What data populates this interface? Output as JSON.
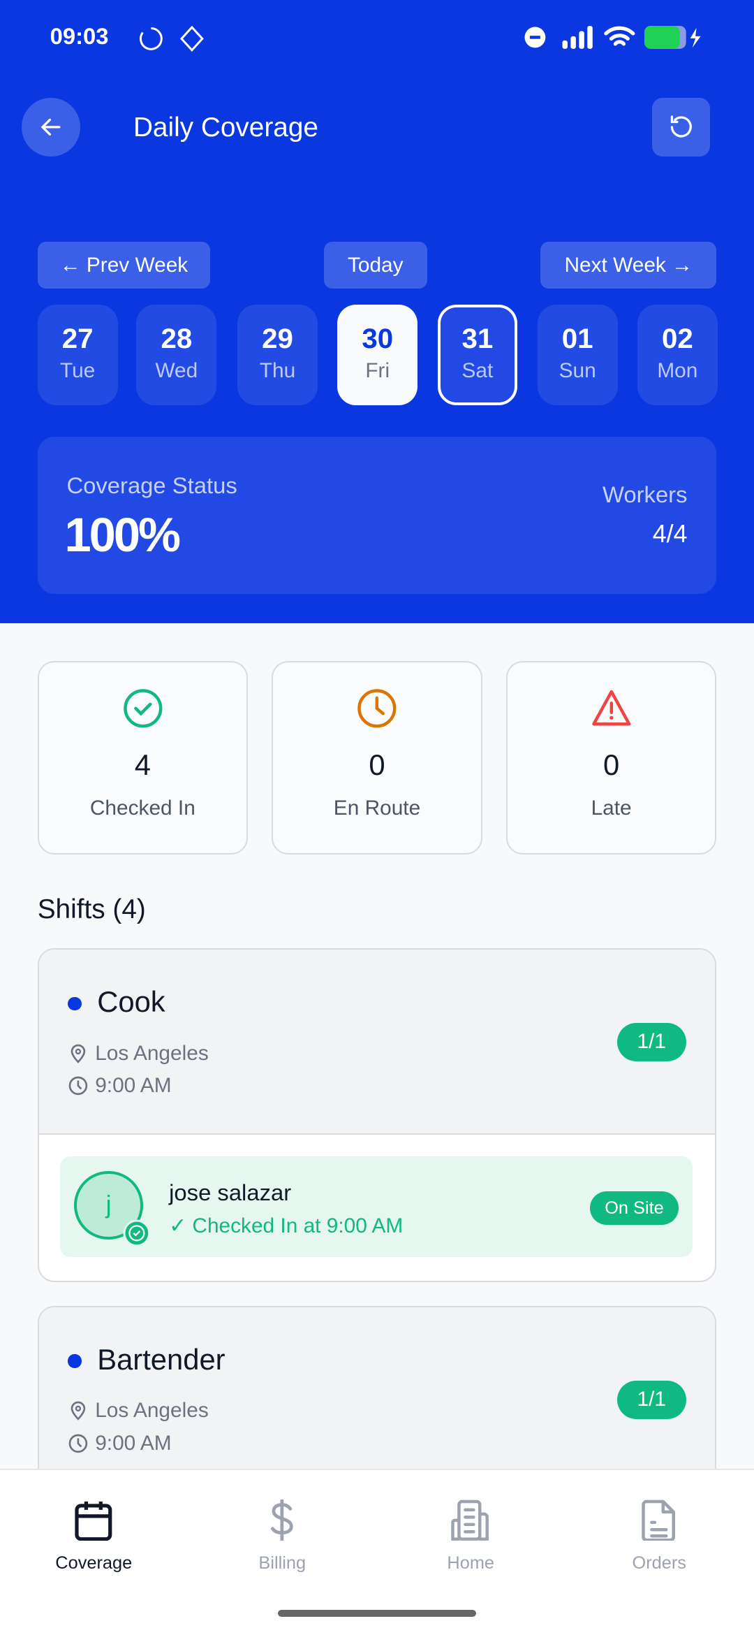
{
  "status_bar": {
    "time": "09:03"
  },
  "header": {
    "title": "Daily Coverage",
    "back_icon": "arrow-left-icon",
    "refresh_icon": "refresh-icon"
  },
  "week_nav": {
    "prev": "← Prev Week",
    "today": "Today",
    "next": "Next Week →"
  },
  "days": [
    {
      "num": "27",
      "name": "Tue"
    },
    {
      "num": "28",
      "name": "Wed"
    },
    {
      "num": "29",
      "name": "Thu"
    },
    {
      "num": "30",
      "name": "Fri",
      "selected": true
    },
    {
      "num": "31",
      "name": "Sat",
      "today": true
    },
    {
      "num": "01",
      "name": "Sun"
    },
    {
      "num": "02",
      "name": "Mon"
    }
  ],
  "coverage": {
    "label": "Coverage Status",
    "value": "100%",
    "workers_label": "Workers",
    "workers_value": "4/4"
  },
  "stats": [
    {
      "value": "4",
      "label": "Checked In",
      "icon": "check-circle-icon",
      "color": "#10b981"
    },
    {
      "value": "0",
      "label": "En Route",
      "icon": "clock-icon",
      "color": "#d97706"
    },
    {
      "value": "0",
      "label": "Late",
      "icon": "warning-icon",
      "color": "#ef4444"
    }
  ],
  "shifts_title": "Shifts (4)",
  "shifts": [
    {
      "role": "Cook",
      "location": "Los Angeles",
      "time": "9:00 AM",
      "filled": "1/1",
      "worker": {
        "initial": "j",
        "name": "jose salazar",
        "status_text": "✓ Checked In at 9:00 AM",
        "badge": "On Site"
      }
    },
    {
      "role": "Bartender",
      "location": "Los Angeles",
      "time": "9:00 AM",
      "filled": "1/1"
    }
  ],
  "nav": [
    {
      "label": "Coverage",
      "active": true
    },
    {
      "label": "Billing"
    },
    {
      "label": "Home"
    },
    {
      "label": "Orders"
    }
  ],
  "colors": {
    "primary": "#0a37e0",
    "success": "#10b981"
  }
}
